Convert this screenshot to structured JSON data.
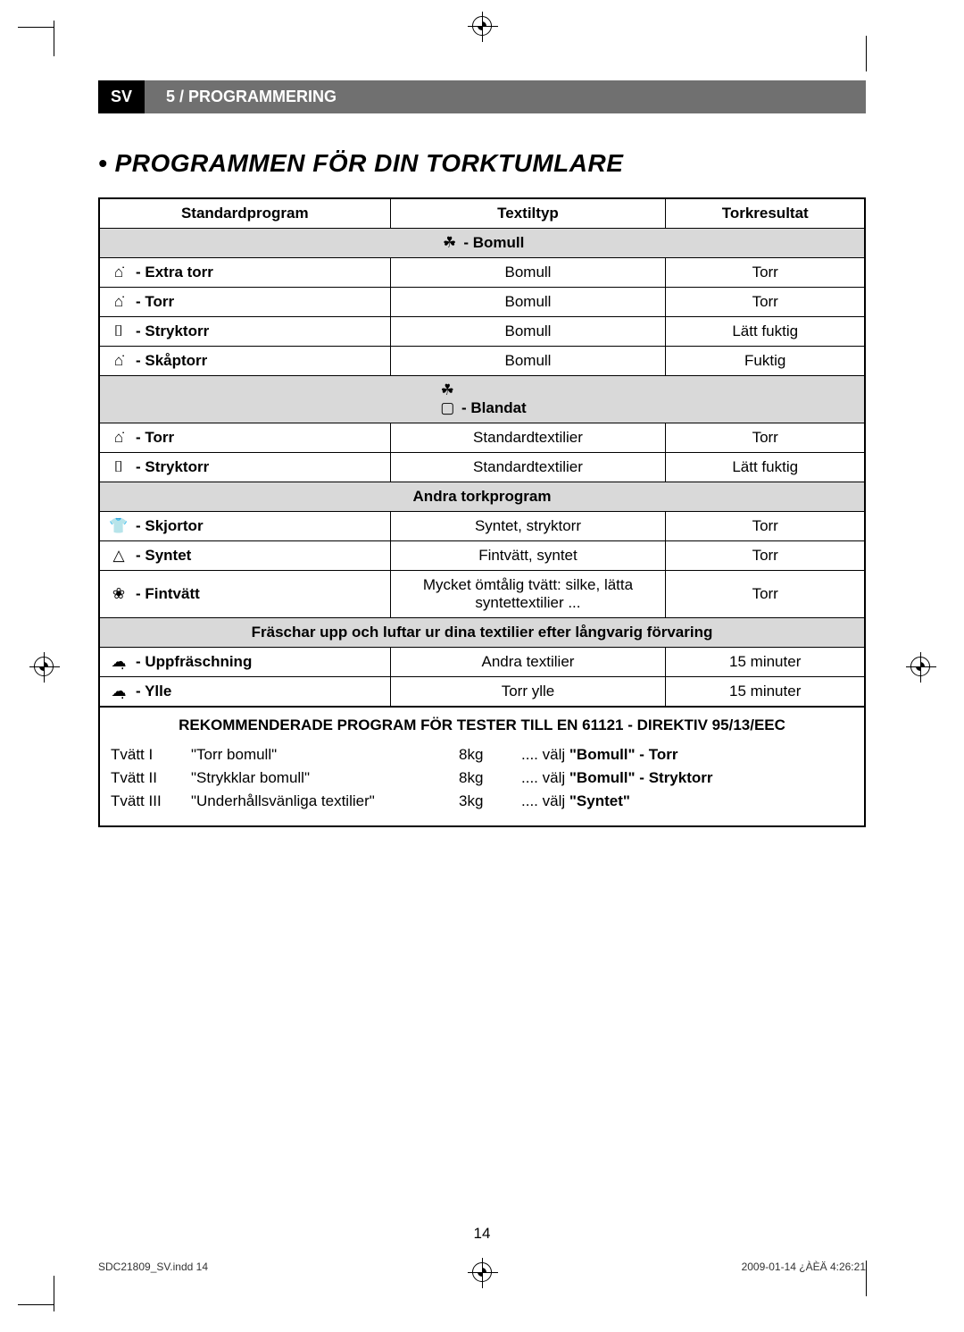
{
  "header": {
    "lang": "SV",
    "section": "5 / PROGRAMMERING"
  },
  "heading": "• PROGRAMMEN FÖR DIN TORKTUMLARE",
  "table": {
    "headers": {
      "program": "Standardprogram",
      "textile": "Textiltyp",
      "result": "Torkresultat"
    },
    "groups": [
      {
        "category": " - Bomull",
        "category_icon": "cotton-icon",
        "category_glyph": "☘",
        "rows": [
          {
            "icon": "extra-dry-icon",
            "glyph": "⌂̇",
            "name": " - Extra torr",
            "textile": "Bomull",
            "result": "Torr"
          },
          {
            "icon": "dry-icon",
            "glyph": "⌂̇",
            "name": " - Torr",
            "textile": "Bomull",
            "result": "Torr"
          },
          {
            "icon": "iron-dry-icon",
            "glyph": "⌷",
            "name": " - Stryktorr",
            "textile": "Bomull",
            "result": "Lätt fuktig"
          },
          {
            "icon": "cupboard-dry-icon",
            "glyph": "⌂̇",
            "name": " - Skåptorr",
            "textile": "Bomull",
            "result": "Fuktig"
          }
        ]
      },
      {
        "category": " - Blandat",
        "category_icon": "mixed-icon",
        "category_glyph": "☘▢",
        "rows": [
          {
            "icon": "dry-icon",
            "glyph": "⌂̇",
            "name": " - Torr",
            "textile": "Standardtextilier",
            "result": "Torr"
          },
          {
            "icon": "iron-dry-icon",
            "glyph": "⌷",
            "name": " - Stryktorr",
            "textile": "Standardtextilier",
            "result": "Lätt fuktig"
          }
        ]
      },
      {
        "category": "Andra torkprogram",
        "category_icon": "",
        "category_glyph": "",
        "rows": [
          {
            "icon": "shirts-icon",
            "glyph": "👕",
            "name": " - Skjortor",
            "textile": "Syntet, stryktorr",
            "result": "Torr"
          },
          {
            "icon": "synthetic-icon",
            "glyph": "△",
            "name": " - Syntet",
            "textile": "Fintvätt, syntet",
            "result": "Torr"
          },
          {
            "icon": "delicate-icon",
            "glyph": "❀",
            "name": " - Fintvätt",
            "textile": "Mycket ömtålig tvätt: silke, lätta syntettextilier ...",
            "result": "Torr"
          }
        ]
      },
      {
        "category": "Fräschar upp och luftar ur dina textilier efter långvarig förvaring",
        "category_icon": "",
        "category_glyph": "",
        "rows": [
          {
            "icon": "refresh-icon",
            "glyph": "☁̣",
            "name": " - Uppfräschning",
            "textile": "Andra textilier",
            "result": "15 minuter"
          },
          {
            "icon": "wool-icon",
            "glyph": "☁̣",
            "name": " - Ylle",
            "textile": "Torr ylle",
            "result": "15 minuter"
          }
        ]
      }
    ]
  },
  "recommended": {
    "title": "REKOMMENDERADE PROGRAM FÖR TESTER TILL EN 61121 - DIREKTIV 95/13/EEC",
    "rows": [
      {
        "wash": "Tvätt I",
        "desc": "\"Torr bomull\"",
        "weight": "8kg",
        "choose_prefix": ".... välj ",
        "choose_bold": "\"Bomull\" - Torr"
      },
      {
        "wash": "Tvätt II",
        "desc": "\"Strykklar bomull\"",
        "weight": "8kg",
        "choose_prefix": ".... välj ",
        "choose_bold": "\"Bomull\" - Stryktorr"
      },
      {
        "wash": "Tvätt III",
        "desc": "\"Underhållsvänliga textilier\"",
        "weight": "3kg",
        "choose_prefix": ".... välj ",
        "choose_bold": "\"Syntet\""
      }
    ]
  },
  "page_number": "14",
  "footer": {
    "left": "SDC21809_SV.indd   14",
    "right": "2009-01-14   ¿ÀÈÄ 4:26:21"
  },
  "colors": {
    "black": "#000000",
    "header_gray": "#707070",
    "row_gray": "#d9d9d9",
    "white": "#ffffff"
  }
}
